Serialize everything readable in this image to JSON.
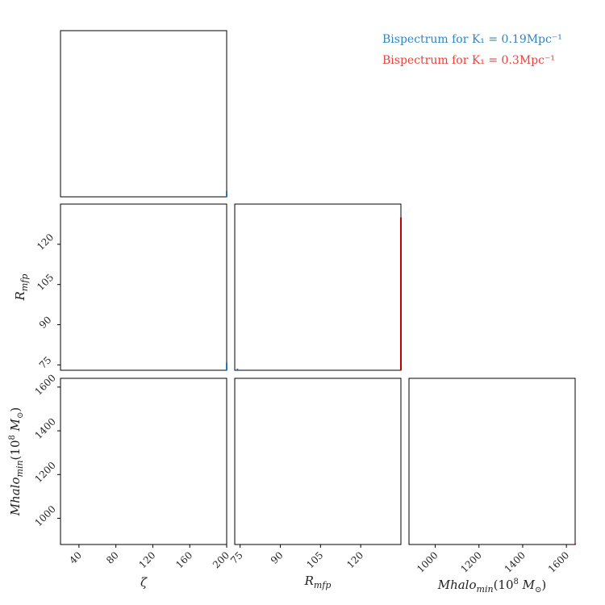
{
  "chart_data": {
    "type": "corner",
    "params": [
      {
        "key": "zeta",
        "label": "ζ",
        "range": [
          20,
          200
        ],
        "ticks": [
          "40",
          "80",
          "120",
          "160",
          "200"
        ],
        "tick_values": [
          40,
          80,
          120,
          160,
          200
        ]
      },
      {
        "key": "rmfp",
        "label": "R",
        "label_sub": "mfp",
        "range": [
          73,
          135
        ],
        "ticks": [
          "75",
          "90",
          "105",
          "120"
        ],
        "tick_values": [
          75,
          90,
          105,
          120
        ]
      },
      {
        "key": "mhalo",
        "label": "Mhalo",
        "label_sub": "min",
        "label_tail": "(10",
        "label_sup": "8",
        "label_end": " M",
        "label_sun": "⊙",
        "label_close": ")",
        "range": [
          880,
          1640
        ],
        "ticks": [
          "1000",
          "1200",
          "1400",
          "1600"
        ],
        "tick_values": [
          1000,
          1200,
          1400,
          1600
        ]
      }
    ],
    "series": [
      {
        "name": "Bispectrum for K₁ = 0.19Mpc⁻¹",
        "color": "#1f77b4",
        "label_color": "#2e86c1"
      },
      {
        "name": "Bispectrum for K₁ = 0.3Mpc⁻¹",
        "color": "#c00000",
        "label_color": "#e8413c"
      }
    ],
    "diagonal_marks": [
      {
        "param": 0,
        "series": 0,
        "x": 200,
        "height": 0.035
      },
      {
        "param": 1,
        "series": 0,
        "x": 74,
        "height": 0.01
      },
      {
        "param": 1,
        "series": 1,
        "x": 135,
        "height": 0.92
      },
      {
        "param": 2,
        "series": 1,
        "x": 1640,
        "height": 0.005
      }
    ],
    "offdiag_marks": [
      {
        "row": 1,
        "col": 0,
        "series": 0,
        "x": 200,
        "y": 74,
        "h": 1.5
      }
    ],
    "legend": "top-right"
  }
}
